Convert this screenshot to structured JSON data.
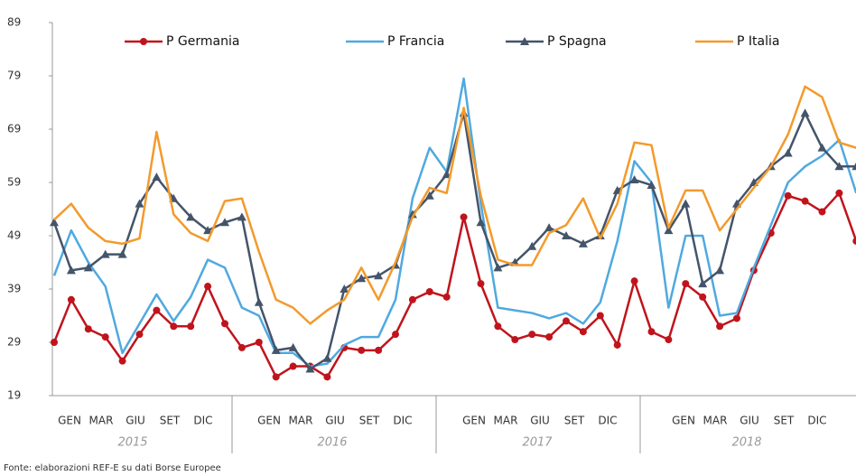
{
  "chart_data": {
    "type": "line",
    "categories": [
      null,
      null,
      null,
      null,
      null,
      null,
      null,
      null,
      null,
      null,
      null,
      null,
      null,
      null,
      null,
      null,
      null,
      null,
      null,
      null,
      null,
      null,
      null,
      null,
      null,
      null,
      null,
      null,
      null,
      null,
      null,
      null,
      null,
      null,
      null,
      null,
      null,
      null,
      null,
      null,
      null,
      null,
      null,
      null,
      null,
      null,
      null,
      null
    ],
    "x_groups": [
      {
        "label": "2015",
        "months": [
          "GEN",
          "MAR",
          "GIU",
          "SET",
          "DIC"
        ]
      },
      {
        "label": "2016",
        "months": [
          "GEN",
          "MAR",
          "GIU",
          "SET",
          "DIC"
        ]
      },
      {
        "label": "2017",
        "months": [
          "GEN",
          "MAR",
          "GIU",
          "SET",
          "DIC"
        ]
      },
      {
        "label": "2018",
        "months": [
          "GEN",
          "MAR",
          "GIU",
          "SET",
          "DIC"
        ]
      }
    ],
    "series": [
      {
        "name": "P Germania",
        "color": "#c0141c",
        "marker": "circle",
        "values": [
          29,
          37,
          31.5,
          30,
          25.5,
          30.5,
          35,
          32,
          32,
          39.5,
          32.5,
          28,
          29,
          22.5,
          24.5,
          24.5,
          22.5,
          28,
          27.5,
          27.5,
          30.5,
          37,
          38.5,
          37.5,
          52.5,
          40,
          32,
          29.5,
          30.5,
          30,
          33,
          31,
          34,
          28.5,
          40.5,
          31,
          29.5,
          40,
          37.5,
          32,
          33.5,
          42.5,
          49.5,
          56.5,
          55.5,
          53.5,
          57,
          48
        ]
      },
      {
        "name": "P Francia",
        "color": "#4fa9e0",
        "marker": null,
        "values": [
          41.5,
          50,
          44,
          39.5,
          27,
          32.5,
          38,
          33,
          37.5,
          44.5,
          43,
          35.5,
          34,
          27,
          27,
          24.5,
          25,
          28.5,
          30,
          30,
          37,
          56,
          65.5,
          61,
          78.5,
          55,
          35.5,
          35,
          34.5,
          33.5,
          34.5,
          32.5,
          36.5,
          48,
          63,
          59,
          35.5,
          49,
          49,
          34,
          34.5,
          43,
          51,
          59,
          62,
          64,
          67,
          57
        ]
      },
      {
        "name": "P Spagna",
        "color": "#44546a",
        "marker": "triangle",
        "values": [
          51.5,
          42.5,
          43,
          45.5,
          45.5,
          55,
          60,
          56,
          52.5,
          50,
          51.5,
          52.5,
          36.5,
          27.5,
          28,
          24,
          26,
          39,
          41,
          41.5,
          43.5,
          53,
          56.5,
          60.5,
          72,
          51.5,
          43,
          44,
          47,
          50.5,
          49,
          47.5,
          49,
          57.5,
          59.5,
          58.5,
          50,
          55,
          40,
          42.5,
          55,
          59,
          62,
          64.5,
          72,
          65.5,
          62,
          62
        ]
      },
      {
        "name": "P Italia",
        "color": "#f39a2b",
        "marker": null,
        "values": [
          52,
          55,
          50.5,
          48,
          47.5,
          48.5,
          68.5,
          53,
          49.5,
          48,
          55.5,
          56,
          46,
          37,
          35.5,
          32.5,
          35,
          37,
          43,
          37,
          44,
          52.5,
          58,
          57,
          73,
          56.5,
          44.5,
          43.5,
          43.5,
          49.5,
          51,
          56,
          48.5,
          55,
          66.5,
          66,
          50.5,
          57.5,
          57.5,
          50,
          54,
          58,
          62,
          68,
          77,
          75,
          66.5,
          65.5
        ]
      }
    ],
    "ylim": [
      19,
      89
    ],
    "yticks": [
      19,
      29,
      39,
      49,
      59,
      69,
      79,
      89
    ],
    "grid": false,
    "source": "Fonte: elaborazioni REF-E su dati Borse Europee"
  }
}
